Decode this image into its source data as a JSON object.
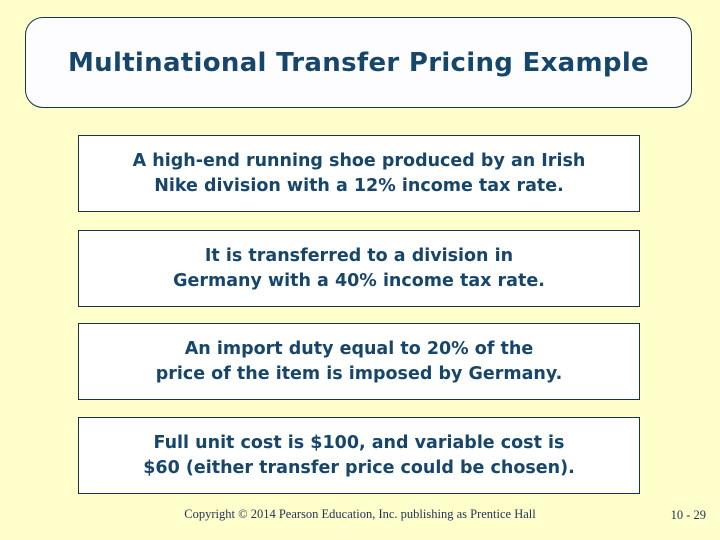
{
  "slide": {
    "title": "Multinational Transfer Pricing Example",
    "statements": [
      {
        "line1": "A high-end running shoe produced by an Irish",
        "line2": "Nike division with a 12% income tax rate."
      },
      {
        "line1": "It is transferred to a division in",
        "line2": "Germany with a 40% income tax rate."
      },
      {
        "line1": "An import duty equal to 20% of the",
        "line2": "price of the item is imposed by Germany."
      },
      {
        "line1": "Full unit cost is $100, and variable cost is",
        "line2": "$60 (either transfer price could be chosen)."
      }
    ],
    "footer": {
      "copyright": "Copyright © 2014 Pearson Education, Inc. publishing as Prentice Hall",
      "page_number": "10 - 29"
    },
    "colors": {
      "background": "#FFFFCC",
      "box_fill": "#FFFFFF",
      "border": "#16334A",
      "text": "#17466B"
    }
  }
}
